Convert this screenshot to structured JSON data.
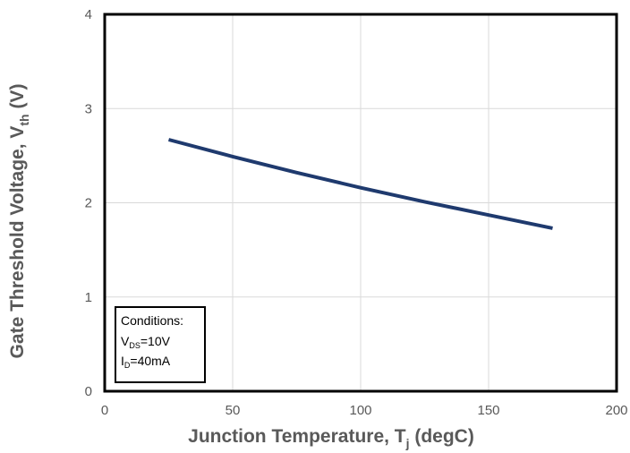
{
  "chart_data": {
    "type": "line",
    "xlabel": {
      "main": "Junction Temperature, T",
      "sub": "j",
      "tail": " (degC)"
    },
    "ylabel": {
      "main": "Gate Threshold Voltage, V",
      "sub": "th",
      "tail": " (V)"
    },
    "xlim": [
      0,
      200
    ],
    "ylim": [
      0,
      4
    ],
    "xticks": [
      0,
      50,
      100,
      150,
      200
    ],
    "yticks": [
      0,
      1,
      2,
      3,
      4
    ],
    "grid": true,
    "series": [
      {
        "color": "#1f3a6e",
        "x": [
          25,
          50,
          75,
          100,
          125,
          150,
          175
        ],
        "y": [
          2.67,
          2.49,
          2.32,
          2.16,
          2.01,
          1.87,
          1.73
        ]
      }
    ],
    "annotation": {
      "title": "Conditions:",
      "line1": {
        "main": "V",
        "sub": "DS",
        "tail": "=10V"
      },
      "line2": {
        "main": "I",
        "sub": "D",
        "tail": "=40mA"
      }
    }
  }
}
